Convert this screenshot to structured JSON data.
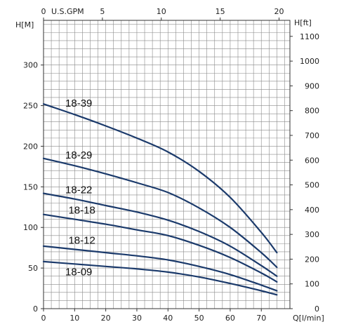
{
  "chart_data": {
    "type": "line",
    "axes": {
      "bottom": {
        "label": "Q[l/min]",
        "range": [
          0,
          75
        ],
        "ticks": [
          0,
          10,
          20,
          30,
          40,
          50,
          60,
          70
        ]
      },
      "top": {
        "label": "U.S.GPM",
        "range": [
          0,
          19.81
        ],
        "ticks": [
          0,
          5,
          10,
          15,
          20
        ]
      },
      "left": {
        "label": "H[M]",
        "range": [
          0,
          350
        ],
        "ticks": [
          0,
          50,
          100,
          150,
          200,
          250,
          300
        ]
      },
      "right": {
        "label": "H[ft]",
        "range": [
          0,
          1148
        ],
        "ticks": [
          0,
          100,
          200,
          300,
          400,
          500,
          600,
          700,
          800,
          900,
          1000,
          1100
        ]
      }
    },
    "grid": true,
    "series": [
      {
        "name": "18-39",
        "x": [
          0,
          10,
          20,
          30,
          40,
          50,
          60,
          70,
          75
        ],
        "y": [
          252,
          239,
          225,
          210,
          193,
          169,
          137,
          94,
          69
        ]
      },
      {
        "name": "18-29",
        "x": [
          0,
          10,
          20,
          30,
          40,
          50,
          60,
          70,
          75
        ],
        "y": [
          185,
          176,
          166,
          155,
          143,
          124,
          100,
          69,
          51
        ]
      },
      {
        "name": "18-22",
        "x": [
          0,
          10,
          20,
          30,
          40,
          50,
          60,
          70,
          75
        ],
        "y": [
          142,
          135,
          127,
          119,
          109,
          95,
          77,
          53,
          40
        ]
      },
      {
        "name": "18-18",
        "x": [
          0,
          10,
          20,
          30,
          40,
          50,
          60,
          70,
          75
        ],
        "y": [
          116,
          110,
          104,
          97,
          90,
          78,
          63,
          44,
          33
        ]
      },
      {
        "name": "18-12",
        "x": [
          0,
          10,
          20,
          30,
          40,
          50,
          60,
          70,
          75
        ],
        "y": [
          77,
          73,
          69,
          65,
          60,
          52,
          42,
          29,
          22
        ]
      },
      {
        "name": "18-09",
        "x": [
          0,
          10,
          20,
          30,
          40,
          50,
          60,
          70,
          75
        ],
        "y": [
          58,
          55,
          52,
          49,
          45,
          39,
          31,
          22,
          17
        ]
      }
    ],
    "colors": {
      "curve": "#1b3a6b",
      "grid": "#8a8a8a",
      "frame": "#333333"
    }
  }
}
